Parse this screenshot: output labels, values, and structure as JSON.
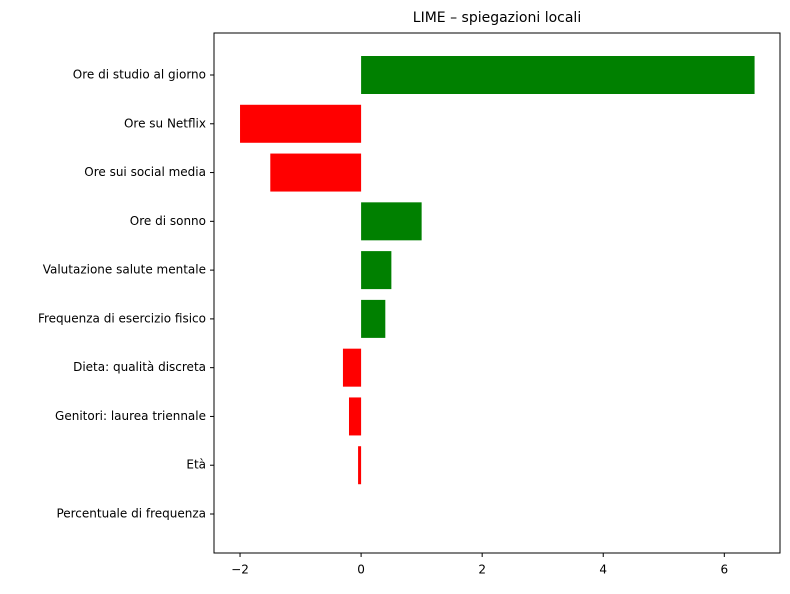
{
  "chart_data": {
    "type": "barh",
    "title": "LIME – spiegazioni locali",
    "categories": [
      "Ore di studio al giorno",
      "Ore su Netflix",
      "Ore sui social media",
      "Ore di sonno",
      "Valutazione salute mentale",
      "Frequenza di esercizio fisico",
      "Dieta: qualità discreta",
      "Genitori: laurea triennale",
      "Età",
      "Percentuale di frequenza"
    ],
    "values": [
      6.5,
      -2.0,
      -1.5,
      1.0,
      0.5,
      0.4,
      -0.3,
      -0.2,
      -0.05,
      0
    ],
    "positive_color": "#008000",
    "negative_color": "#ff0000",
    "xlim": [
      -2.43,
      6.92
    ],
    "xticks": [
      {
        "value": -2,
        "label": "−2"
      },
      0,
      2,
      4,
      6
    ]
  }
}
